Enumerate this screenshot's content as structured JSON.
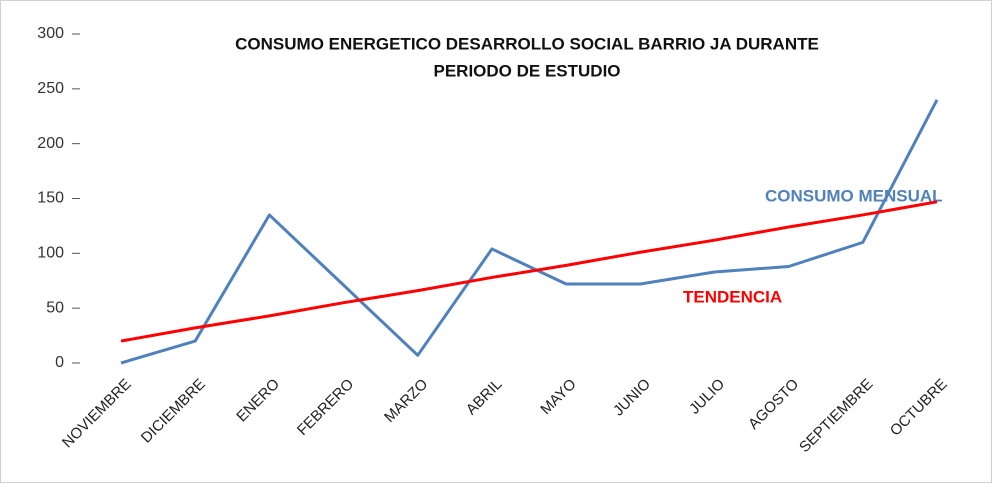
{
  "chart_data": {
    "type": "line",
    "title": [
      "CONSUMO ENERGETICO DESARROLLO SOCIAL BARRIO JA DURANTE",
      "PERIODO DE ESTUDIO"
    ],
    "categories": [
      "NOVIEMBRE",
      "DICIEMBRE",
      "ENERO",
      "FEBRERO",
      "MARZO",
      "ABRIL",
      "MAYO",
      "JUNIO",
      "JULIO",
      "AGOSTO",
      "SEPTIEMBRE",
      "OCTUBRE"
    ],
    "series": [
      {
        "name": "CONSUMO MENSUAL",
        "color": "#4f81bd",
        "values": [
          0,
          20,
          135,
          71,
          7,
          104,
          72,
          72,
          83,
          88,
          110,
          240
        ]
      },
      {
        "name": "TENDENCIA",
        "color": "#ff0000",
        "values": [
          20,
          32,
          43,
          55,
          66,
          78,
          89,
          101,
          112,
          124,
          135,
          147
        ]
      }
    ],
    "ylim": [
      0,
      300
    ],
    "yticks": [
      0,
      50,
      100,
      150,
      200,
      250,
      300
    ],
    "grid": false
  }
}
